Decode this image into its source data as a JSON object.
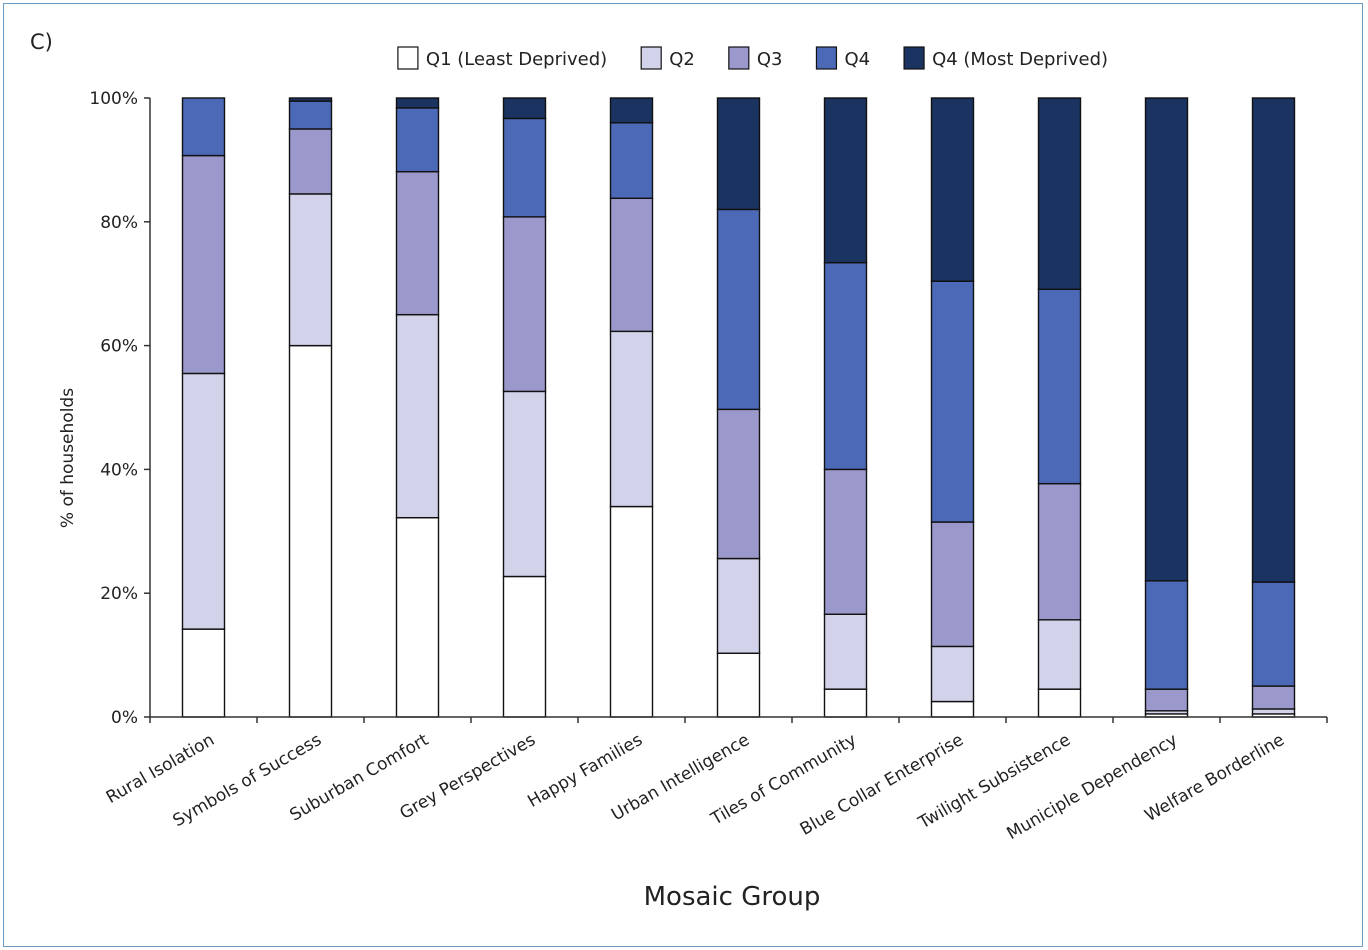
{
  "panel_label": "C)",
  "chart_data": {
    "type": "bar",
    "stacked": true,
    "normalized": true,
    "xlabel": "Mosaic Group",
    "ylabel": "% of households",
    "ylim": [
      0,
      100
    ],
    "yticks": [
      0,
      20,
      40,
      60,
      80,
      100
    ],
    "ytick_labels": [
      "0%",
      "20%",
      "40%",
      "60%",
      "80%",
      "100%"
    ],
    "legend_position": "top",
    "grid": false,
    "categories": [
      "Rural Isolation",
      "Symbols of Success",
      "Suburban Comfort",
      "Grey Perspectives",
      "Happy Families",
      "Urban Intelligence",
      "Tiles of Community",
      "Blue Collar Enterprise",
      "Twilight Subsistence",
      "Municiple Dependency",
      "Welfare Borderline"
    ],
    "series": [
      {
        "name": "Q1 (Least Deprived)",
        "color": "#ffffff",
        "values": [
          14.2,
          60.0,
          32.2,
          22.7,
          34.0,
          10.3,
          4.5,
          2.5,
          4.5,
          0.5,
          0.5
        ]
      },
      {
        "name": "Q2",
        "color": "#d2d2ea",
        "values": [
          41.3,
          24.5,
          32.8,
          29.9,
          28.3,
          15.3,
          12.1,
          8.9,
          11.2,
          0.5,
          0.8
        ]
      },
      {
        "name": "Q3",
        "color": "#9b98cc",
        "values": [
          35.2,
          10.5,
          23.1,
          28.2,
          21.5,
          24.1,
          23.4,
          20.1,
          22.0,
          3.5,
          3.7
        ]
      },
      {
        "name": "Q4",
        "color": "#4b69b6",
        "values": [
          9.3,
          4.5,
          10.3,
          15.9,
          12.2,
          32.3,
          33.4,
          38.9,
          31.4,
          17.5,
          16.8
        ]
      },
      {
        "name": "Q4 (Most Deprived)",
        "color": "#1b3360",
        "values": [
          0.0,
          0.5,
          1.6,
          3.3,
          4.0,
          18.0,
          26.6,
          29.6,
          30.9,
          78.0,
          78.2
        ]
      }
    ]
  }
}
